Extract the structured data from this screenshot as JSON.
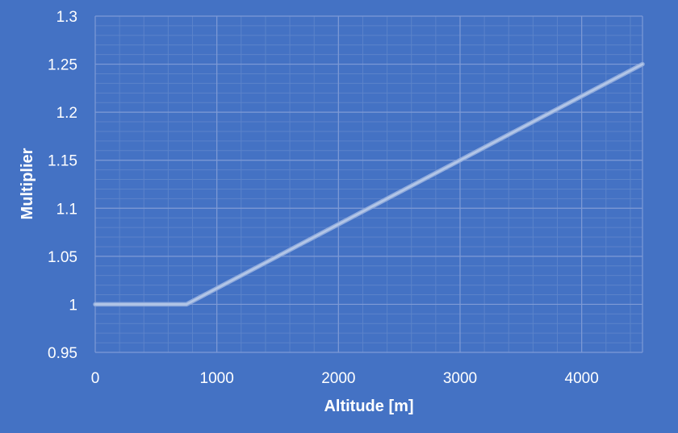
{
  "chart_data": {
    "type": "line",
    "title": "",
    "xlabel": "Altitude [m]",
    "ylabel": "Multiplier",
    "xlim": [
      0,
      4500
    ],
    "ylim": [
      0.95,
      1.3
    ],
    "x_ticks": [
      "0",
      "1000",
      "2000",
      "3000",
      "4000"
    ],
    "x_tick_values": [
      0,
      1000,
      2000,
      3000,
      4000
    ],
    "y_ticks": [
      "0.95",
      "1",
      "1.05",
      "1.1",
      "1.15",
      "1.2",
      "1.25",
      "1.3"
    ],
    "y_tick_values": [
      0.95,
      1.0,
      1.05,
      1.1,
      1.15,
      1.2,
      1.25,
      1.3
    ],
    "grid": true,
    "legend": "none",
    "series": [
      {
        "points": [
          [
            0,
            1.0
          ],
          [
            750,
            1.0
          ],
          [
            4500,
            1.25
          ]
        ]
      }
    ],
    "colors": {
      "background": "#4472c4",
      "line": "#b4c7e7",
      "grid_major": "#7e9ad6",
      "grid_minor": "#5b83ca",
      "text": "#ffffff"
    }
  }
}
